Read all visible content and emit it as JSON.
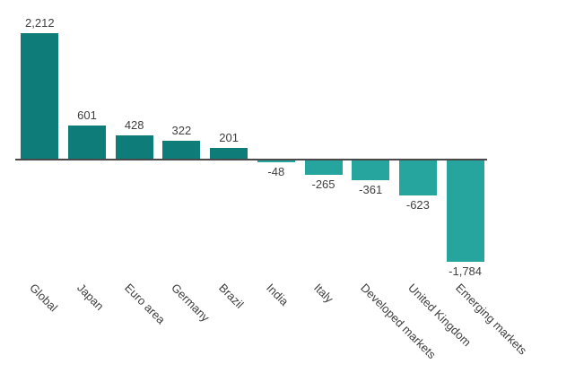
{
  "chart_data": {
    "type": "bar",
    "title": "",
    "xlabel": "",
    "ylabel": "",
    "categories": [
      "Global",
      "Japan",
      "Euro area",
      "Germany",
      "Brazil",
      "India",
      "Italy",
      "Developed markets",
      "United Kingdom",
      "Emerging markets"
    ],
    "values": [
      2212,
      601,
      428,
      322,
      201,
      -48,
      -265,
      -361,
      -623,
      -1784
    ],
    "value_labels": [
      "2,212",
      "601",
      "428",
      "322",
      "201",
      "-48",
      "-265",
      "-361",
      "-623",
      "-1,784"
    ],
    "ylim": [
      -1784,
      2212
    ],
    "grid": false,
    "legend": null,
    "baseline_value": 0,
    "colors": {
      "positive_bar": "#0e7c78",
      "negative_bar": "#26a49e",
      "axis_line": "#4a4a4a",
      "label_text": "#3f3f3f"
    }
  }
}
